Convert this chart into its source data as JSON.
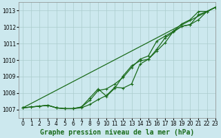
{
  "title": "Graphe pression niveau de la mer (hPa)",
  "xlim": [
    -0.5,
    23
  ],
  "ylim": [
    1006.5,
    1013.5
  ],
  "yticks": [
    1007,
    1008,
    1009,
    1010,
    1011,
    1012,
    1013
  ],
  "xtick_labels": [
    "0",
    "1",
    "2",
    "3",
    "4",
    "5",
    "6",
    "7",
    "8",
    "9",
    "10",
    "11",
    "12",
    "13",
    "14",
    "15",
    "16",
    "17",
    "18",
    "19",
    "20",
    "21",
    "22",
    "23"
  ],
  "bg_color": "#cce8ee",
  "grid_color": "#aacccc",
  "line_color": "#1a6b1a",
  "line1": [
    1007.1,
    1007.15,
    1007.2,
    1007.25,
    1007.1,
    1007.05,
    1007.05,
    1007.1,
    1007.3,
    1007.6,
    1007.85,
    1008.35,
    1008.3,
    1008.55,
    1009.75,
    1010.05,
    1010.55,
    1011.05,
    1011.75,
    1012.2,
    1012.45,
    1012.95,
    1012.95,
    1013.2
  ],
  "line2": [
    1007.1,
    1007.15,
    1007.2,
    1007.25,
    1007.1,
    1007.05,
    1007.05,
    1007.15,
    1007.55,
    1008.15,
    1008.25,
    1008.55,
    1008.95,
    1009.55,
    1010.05,
    1010.25,
    1011.15,
    1011.45,
    1011.75,
    1012.05,
    1012.15,
    1012.45,
    1012.95,
    1013.2
  ],
  "line3_x": [
    0,
    3,
    4,
    5,
    6,
    7,
    8,
    9,
    10,
    11,
    12,
    13,
    14,
    15,
    16,
    17,
    18,
    19,
    20,
    21,
    22,
    23
  ],
  "line3": [
    1007.1,
    1007.25,
    1007.1,
    1007.05,
    1007.05,
    1007.15,
    1007.7,
    1008.25,
    1007.8,
    1008.3,
    1009.05,
    1009.65,
    1009.95,
    1010.05,
    1010.65,
    1011.35,
    1011.7,
    1012.05,
    1012.15,
    1012.75,
    1012.95,
    1013.2
  ],
  "line4_x": [
    0,
    23
  ],
  "line4": [
    1007.1,
    1013.2
  ],
  "marker": "+",
  "markersize": 3.5,
  "linewidth": 0.9,
  "title_fontsize": 7.0,
  "tick_fontsize": 5.5
}
